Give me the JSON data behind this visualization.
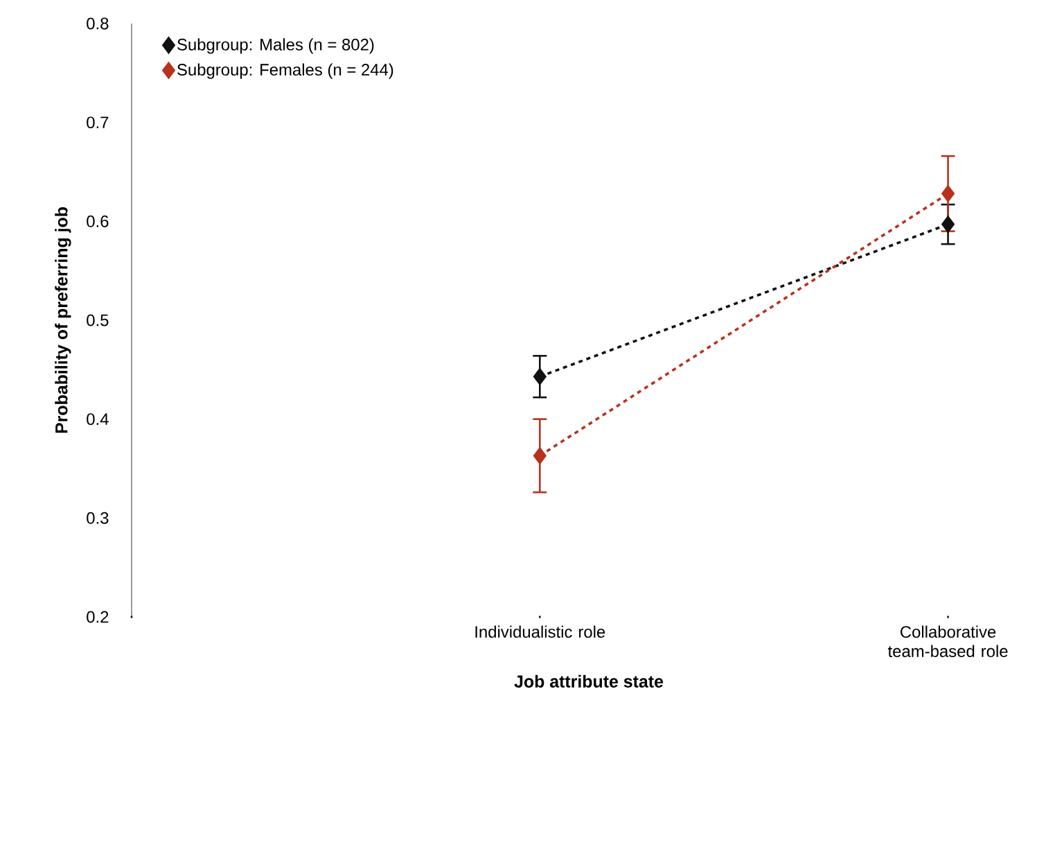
{
  "chart_data": {
    "type": "line",
    "xlabel": "Job attribute state",
    "ylabel": "Probability of preferring job",
    "categories": [
      null,
      "Individualistic role",
      "Collaborative team-based role"
    ],
    "series": [
      {
        "name": "Subgroup: Males (n = 802)",
        "color": "#111111",
        "values": [
          null,
          0.443,
          0.597
        ],
        "errors": [
          null,
          0.021,
          0.02
        ]
      },
      {
        "name": "Subgroup: Females (n = 244)",
        "color": "#b8321e",
        "values": [
          null,
          0.363,
          0.628
        ],
        "errors": [
          null,
          0.037,
          0.038
        ]
      }
    ],
    "ylim": [
      0.2,
      0.8
    ],
    "yticks": [
      0.2,
      0.3,
      0.4,
      0.5,
      0.6,
      0.7,
      0.8
    ],
    "grid": false,
    "legend": "top left",
    "marker": "diamond",
    "line_style": "dashed"
  }
}
